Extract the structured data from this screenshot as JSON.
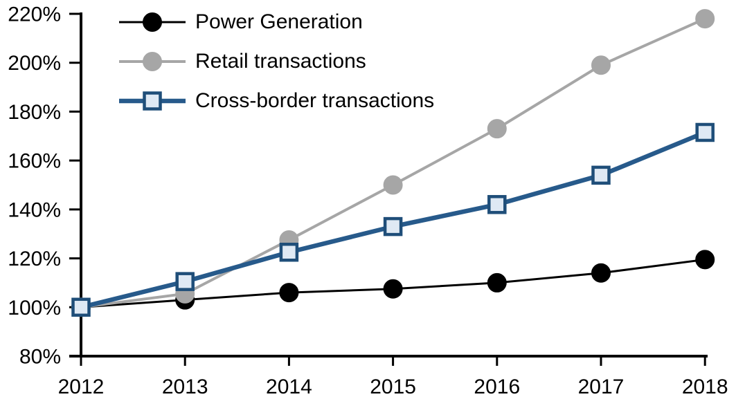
{
  "chart_data": {
    "type": "line",
    "title": "",
    "categories": [
      "2012",
      "2013",
      "2014",
      "2015",
      "2016",
      "2017",
      "2018"
    ],
    "series": [
      {
        "name": "Power Generation",
        "values": [
          100,
          103,
          106,
          107.5,
          110,
          114,
          119.5
        ],
        "color": "#000000",
        "line_width": 3,
        "marker": "circle",
        "marker_fill": "#000000",
        "marker_stroke": "#000000"
      },
      {
        "name": "Retail transactions",
        "values": [
          100,
          105.5,
          127.5,
          150,
          173,
          199,
          218
        ],
        "color": "#A6A6A6",
        "line_width": 4,
        "marker": "circle",
        "marker_fill": "#A6A6A6",
        "marker_stroke": "#A6A6A6"
      },
      {
        "name": "Cross-border transactions",
        "values": [
          100,
          110.5,
          122.5,
          133,
          142,
          154,
          171.5
        ],
        "color": "#275A8B",
        "line_width": 6.5,
        "marker": "square",
        "marker_fill": "#DFE9F4",
        "marker_stroke": "#1F4E79"
      }
    ],
    "y_axis": {
      "min": 80,
      "max": 220,
      "step": 20,
      "tick_suffix": "%",
      "tick_labels_top_to_bottom": [
        "220%",
        "200%",
        "180%",
        "160%",
        "140%",
        "120%",
        "100%",
        "80%"
      ]
    },
    "x_axis": {
      "tick_labels": [
        "2012",
        "2013",
        "2014",
        "2015",
        "2016",
        "2017",
        "2018"
      ]
    },
    "legend_position": "top-left",
    "grid": false,
    "axis_color": "#000000",
    "background_color": "#FFFFFF"
  }
}
